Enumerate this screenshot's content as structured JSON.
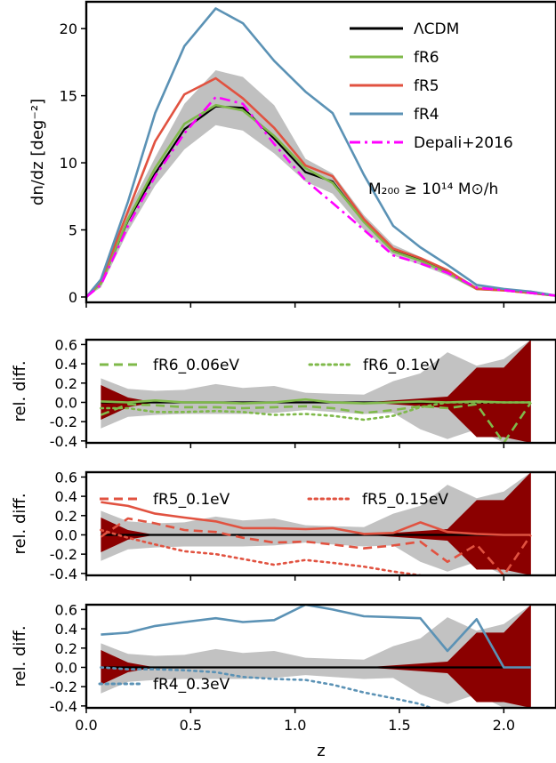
{
  "chart_data": [
    {
      "type": "line",
      "xlabel": "",
      "ylabel": "dn/dz [deg⁻²]",
      "xlim": [
        0.0,
        2.25
      ],
      "ylim": [
        -0.4,
        22
      ],
      "yticks": [
        0,
        5,
        10,
        15,
        20
      ],
      "legend_placement": "top-right",
      "annotation": "M₂₀₀ ≥ 10¹⁴ M⊙/h",
      "x": [
        0.0,
        0.07,
        0.2,
        0.33,
        0.47,
        0.62,
        0.75,
        0.9,
        1.05,
        1.18,
        1.33,
        1.47,
        1.6,
        1.73,
        1.87,
        2.0,
        2.13,
        2.25
      ],
      "band": {
        "color": "#c0c0c0",
        "lower": [
          0.0,
          0.7,
          4.9,
          8.3,
          11.0,
          12.8,
          12.4,
          10.7,
          8.6,
          7.7,
          5.0,
          3.1,
          2.4,
          1.6,
          0.5,
          0.4,
          0.2,
          0.0
        ],
        "upper": [
          0.0,
          1.2,
          6.4,
          10.4,
          14.4,
          16.9,
          16.4,
          14.3,
          10.3,
          9.2,
          6.1,
          3.9,
          3.0,
          2.0,
          0.8,
          0.6,
          0.4,
          0.1
        ]
      },
      "series": [
        {
          "name": "ΛCDM",
          "color": "#000000",
          "style": "solid",
          "values": [
            0.0,
            1.0,
            5.7,
            9.2,
            12.5,
            14.2,
            14.1,
            11.8,
            9.3,
            8.6,
            5.6,
            3.5,
            2.8,
            1.9,
            0.6,
            0.5,
            0.4,
            0.1
          ]
        },
        {
          "name": "fR6",
          "color": "#7fb94a",
          "style": "solid",
          "values": [
            0.0,
            1.0,
            5.8,
            9.6,
            12.9,
            14.3,
            13.9,
            12.0,
            9.6,
            8.5,
            5.6,
            3.4,
            2.7,
            1.8,
            0.6,
            0.5,
            0.3,
            0.1
          ]
        },
        {
          "name": "fR5",
          "color": "#e15240",
          "style": "solid",
          "values": [
            0.0,
            1.2,
            6.4,
            11.6,
            15.1,
            16.3,
            14.8,
            12.6,
            9.8,
            9.0,
            5.8,
            3.6,
            2.9,
            2.0,
            0.6,
            0.5,
            0.3,
            0.1
          ]
        },
        {
          "name": "fR4",
          "color": "#5b92b5",
          "style": "solid",
          "values": [
            0.0,
            1.3,
            7.1,
            13.7,
            18.7,
            21.5,
            20.4,
            17.6,
            15.3,
            13.7,
            9.1,
            5.3,
            3.7,
            2.4,
            0.9,
            0.6,
            0.4,
            0.1
          ]
        },
        {
          "name": "Depali+2016",
          "color": "#ff00ff",
          "style": "dashdot",
          "values": [
            0.0,
            0.9,
            5.3,
            9.0,
            12.2,
            14.9,
            14.4,
            11.4,
            8.7,
            7.0,
            5.0,
            3.1,
            2.5,
            1.8,
            0.7,
            0.5,
            0.3,
            0.1
          ]
        }
      ]
    },
    {
      "type": "line",
      "xlabel": "",
      "ylabel": "rel. diff.",
      "xlim": [
        0.0,
        2.25
      ],
      "ylim": [
        -0.42,
        0.65
      ],
      "yticks": [
        -0.4,
        -0.2,
        0.0,
        0.2,
        0.4,
        0.6
      ],
      "legend_placement": "top",
      "band_gray": {
        "x": [
          0.07,
          0.2,
          0.33,
          0.47,
          0.62,
          0.75,
          0.9,
          1.05,
          1.18,
          1.33,
          1.47,
          1.6,
          1.73,
          1.87,
          2.0,
          2.13
        ],
        "upper": [
          0.25,
          0.14,
          0.12,
          0.13,
          0.19,
          0.15,
          0.17,
          0.1,
          0.09,
          0.08,
          0.22,
          0.3,
          0.52,
          0.38,
          0.45,
          0.65
        ],
        "lower": [
          -0.27,
          -0.15,
          -0.13,
          -0.12,
          -0.12,
          -0.12,
          -0.11,
          -0.08,
          -0.1,
          -0.12,
          -0.11,
          -0.28,
          -0.38,
          -0.28,
          -0.42,
          -0.42
        ]
      },
      "band_red": {
        "x": [
          0.07,
          0.2,
          0.33,
          0.47,
          0.62,
          0.75,
          0.9,
          1.05,
          1.18,
          1.33,
          1.47,
          1.6,
          1.73,
          1.87,
          2.0,
          2.13
        ],
        "upper": [
          0.18,
          0.05,
          0.0,
          0.0,
          0.0,
          0.0,
          0.0,
          0.0,
          0.0,
          0.0,
          0.02,
          0.04,
          0.06,
          0.36,
          0.36,
          0.65
        ],
        "lower": [
          -0.18,
          -0.05,
          0.0,
          0.0,
          0.0,
          0.0,
          0.0,
          0.0,
          0.0,
          0.0,
          -0.02,
          -0.04,
          -0.06,
          -0.36,
          -0.36,
          -0.42
        ]
      },
      "series": [
        {
          "name": "",
          "color": "#000000",
          "style": "solid",
          "x": [
            0.07,
            2.13
          ],
          "values": [
            0.0,
            0.0
          ]
        },
        {
          "name": "",
          "color": "#7fb94a",
          "style": "solid",
          "x": [
            0.07,
            0.2,
            0.33,
            0.47,
            0.62,
            0.75,
            0.9,
            1.05,
            1.18,
            1.33,
            1.47,
            1.6,
            1.73,
            1.87,
            2.0,
            2.13
          ],
          "values": [
            0.01,
            0.0,
            0.02,
            0.0,
            0.0,
            -0.01,
            0.0,
            0.03,
            0.0,
            -0.01,
            0.0,
            0.01,
            0.0,
            0.01,
            0.0,
            0.0
          ]
        },
        {
          "name": "fR6_0.06eV",
          "color": "#7fb94a",
          "style": "dashed",
          "x": [
            0.07,
            0.2,
            0.33,
            0.47,
            0.62,
            0.75,
            0.9,
            1.05,
            1.18,
            1.33,
            1.47,
            1.6,
            1.73,
            1.87,
            2.0,
            2.13
          ],
          "values": [
            -0.13,
            -0.02,
            -0.03,
            -0.05,
            -0.05,
            -0.06,
            -0.05,
            -0.04,
            -0.06,
            -0.11,
            -0.08,
            -0.04,
            -0.06,
            -0.02,
            -0.42,
            0.0
          ]
        },
        {
          "name": "fR6_0.1eV",
          "color": "#7fb94a",
          "style": "dotted",
          "x": [
            0.07,
            0.2,
            0.33,
            0.47,
            0.62,
            0.75,
            0.9,
            1.05,
            1.18,
            1.33,
            1.47,
            1.6,
            1.73,
            1.87,
            2.0,
            2.13
          ],
          "values": [
            -0.06,
            -0.06,
            -0.1,
            -0.1,
            -0.09,
            -0.1,
            -0.13,
            -0.12,
            -0.14,
            -0.18,
            -0.14,
            -0.05,
            0.0,
            0.0,
            0.0,
            0.0
          ]
        }
      ]
    },
    {
      "type": "line",
      "xlabel": "",
      "ylabel": "rel. diff.",
      "xlim": [
        0.0,
        2.25
      ],
      "ylim": [
        -0.42,
        0.65
      ],
      "yticks": [
        -0.4,
        -0.2,
        0.0,
        0.2,
        0.4,
        0.6
      ],
      "legend_placement": "top",
      "band_gray": {
        "x": [
          0.07,
          0.2,
          0.33,
          0.47,
          0.62,
          0.75,
          0.9,
          1.05,
          1.18,
          1.33,
          1.47,
          1.6,
          1.73,
          1.87,
          2.0,
          2.13
        ],
        "upper": [
          0.25,
          0.14,
          0.12,
          0.13,
          0.19,
          0.15,
          0.17,
          0.1,
          0.09,
          0.08,
          0.22,
          0.3,
          0.52,
          0.38,
          0.45,
          0.65
        ],
        "lower": [
          -0.27,
          -0.15,
          -0.13,
          -0.12,
          -0.12,
          -0.12,
          -0.11,
          -0.08,
          -0.1,
          -0.12,
          -0.11,
          -0.28,
          -0.38,
          -0.28,
          -0.42,
          -0.42
        ]
      },
      "band_red": {
        "x": [
          0.07,
          0.2,
          0.33,
          0.47,
          0.62,
          0.75,
          0.9,
          1.05,
          1.18,
          1.33,
          1.47,
          1.6,
          1.73,
          1.87,
          2.0,
          2.13
        ],
        "upper": [
          0.18,
          0.05,
          0.0,
          0.0,
          0.0,
          0.0,
          0.0,
          0.0,
          0.0,
          0.0,
          0.02,
          0.04,
          0.06,
          0.36,
          0.36,
          0.65
        ],
        "lower": [
          -0.18,
          -0.05,
          0.0,
          0.0,
          0.0,
          0.0,
          0.0,
          0.0,
          0.0,
          0.0,
          -0.02,
          -0.04,
          -0.06,
          -0.36,
          -0.36,
          -0.42
        ]
      },
      "series": [
        {
          "name": "",
          "color": "#000000",
          "style": "solid",
          "x": [
            0.07,
            2.13
          ],
          "values": [
            0.0,
            0.0
          ]
        },
        {
          "name": "",
          "color": "#e15240",
          "style": "solid",
          "x": [
            0.07,
            0.2,
            0.33,
            0.47,
            0.62,
            0.75,
            0.9,
            1.05,
            1.18,
            1.33,
            1.47,
            1.6,
            1.73,
            1.87,
            2.0,
            2.13
          ],
          "values": [
            0.34,
            0.3,
            0.22,
            0.18,
            0.14,
            0.07,
            0.07,
            0.06,
            0.07,
            0.01,
            0.02,
            0.13,
            0.03,
            0.01,
            0.0,
            0.0
          ]
        },
        {
          "name": "fR5_0.1eV",
          "color": "#e15240",
          "style": "dashed",
          "x": [
            0.07,
            0.2,
            0.33,
            0.47,
            0.62,
            0.75,
            0.9,
            1.05,
            1.18,
            1.33,
            1.47,
            1.6,
            1.73,
            1.87,
            2.0,
            2.13
          ],
          "values": [
            -0.02,
            0.17,
            0.12,
            0.05,
            0.03,
            -0.03,
            -0.08,
            -0.07,
            -0.1,
            -0.14,
            -0.11,
            -0.07,
            -0.28,
            -0.1,
            -0.42,
            0.0
          ]
        },
        {
          "name": "fR5_0.15eV",
          "color": "#e15240",
          "style": "dotted",
          "x": [
            0.07,
            0.2,
            0.33,
            0.47,
            0.62,
            0.75,
            0.9,
            1.05,
            1.18,
            1.33,
            1.47,
            1.6
          ],
          "values": [
            0.05,
            -0.03,
            -0.1,
            -0.17,
            -0.2,
            -0.25,
            -0.31,
            -0.26,
            -0.29,
            -0.33,
            -0.38,
            -0.42
          ]
        }
      ]
    },
    {
      "type": "line",
      "xlabel": "z",
      "ylabel": "rel. diff.",
      "xlim": [
        0.0,
        2.25
      ],
      "ylim": [
        -0.42,
        0.65
      ],
      "xticks": [
        0.0,
        0.5,
        1.0,
        1.5,
        2.0
      ],
      "yticks": [
        -0.4,
        -0.2,
        0.0,
        0.2,
        0.4,
        0.6
      ],
      "legend_placement": "bottom-left",
      "band_gray": {
        "x": [
          0.07,
          0.2,
          0.33,
          0.47,
          0.62,
          0.75,
          0.9,
          1.05,
          1.18,
          1.33,
          1.47,
          1.6,
          1.73,
          1.87,
          2.0,
          2.13
        ],
        "upper": [
          0.25,
          0.14,
          0.12,
          0.13,
          0.19,
          0.15,
          0.17,
          0.1,
          0.09,
          0.08,
          0.22,
          0.3,
          0.52,
          0.38,
          0.45,
          0.65
        ],
        "lower": [
          -0.27,
          -0.15,
          -0.13,
          -0.12,
          -0.12,
          -0.12,
          -0.11,
          -0.08,
          -0.1,
          -0.12,
          -0.11,
          -0.28,
          -0.38,
          -0.28,
          -0.42,
          -0.42
        ]
      },
      "band_red": {
        "x": [
          0.07,
          0.2,
          0.33,
          0.47,
          0.62,
          0.75,
          0.9,
          1.05,
          1.18,
          1.33,
          1.47,
          1.6,
          1.73,
          1.87,
          2.0,
          2.13
        ],
        "upper": [
          0.18,
          0.05,
          0.0,
          0.0,
          0.0,
          0.0,
          0.0,
          0.0,
          0.0,
          0.0,
          0.02,
          0.04,
          0.06,
          0.36,
          0.36,
          0.65
        ],
        "lower": [
          -0.18,
          -0.05,
          0.0,
          0.0,
          0.0,
          0.0,
          0.0,
          0.0,
          0.0,
          0.0,
          -0.02,
          -0.04,
          -0.06,
          -0.36,
          -0.36,
          -0.42
        ]
      },
      "series": [
        {
          "name": "",
          "color": "#000000",
          "style": "solid",
          "x": [
            0.07,
            2.13
          ],
          "values": [
            0.0,
            0.0
          ]
        },
        {
          "name": "",
          "color": "#5b92b5",
          "style": "solid",
          "x": [
            0.07,
            0.2,
            0.33,
            0.47,
            0.62,
            0.75,
            0.9,
            1.05,
            1.18,
            1.33,
            1.47,
            1.6,
            1.73,
            1.87,
            2.0,
            2.13
          ],
          "values": [
            0.34,
            0.36,
            0.43,
            0.47,
            0.51,
            0.47,
            0.49,
            0.65,
            0.6,
            0.53,
            0.52,
            0.51,
            0.17,
            0.5,
            0.0,
            0.0
          ]
        },
        {
          "name": "fR4_0.3eV",
          "color": "#5b92b5",
          "style": "dotted",
          "x": [
            0.07,
            0.2,
            0.33,
            0.47,
            0.62,
            0.75,
            0.9,
            1.05,
            1.18,
            1.33,
            1.47,
            1.6,
            1.65
          ],
          "values": [
            0.0,
            -0.02,
            -0.02,
            -0.03,
            -0.05,
            -0.1,
            -0.12,
            -0.13,
            -0.18,
            -0.26,
            -0.32,
            -0.38,
            -0.42
          ]
        }
      ]
    }
  ]
}
